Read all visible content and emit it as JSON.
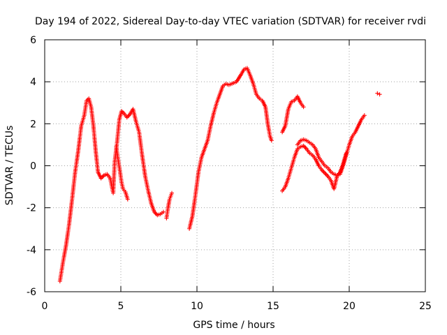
{
  "chart_data": {
    "type": "scatter",
    "title": "Day 194 of 2022, Sidereal Day-to-day VTEC variation (SDTVAR) for receiver rvdi",
    "xlabel": "GPS time / hours",
    "ylabel": "SDTVAR / TECUs",
    "xlim": [
      0,
      25
    ],
    "ylim": [
      -6,
      6
    ],
    "xticks": [
      0,
      5,
      10,
      15,
      20,
      25
    ],
    "yticks": [
      -6,
      -4,
      -2,
      0,
      2,
      4,
      6
    ],
    "grid": true,
    "marker": "plus",
    "color": "#ff0000",
    "segments": [
      [
        [
          1.0,
          -5.5
        ],
        [
          1.2,
          -4.6
        ],
        [
          1.4,
          -3.8
        ],
        [
          1.6,
          -2.8
        ],
        [
          1.8,
          -1.6
        ],
        [
          2.0,
          -0.3
        ],
        [
          2.2,
          0.7
        ],
        [
          2.4,
          1.9
        ],
        [
          2.6,
          2.4
        ],
        [
          2.75,
          3.1
        ],
        [
          2.9,
          3.2
        ],
        [
          3.05,
          2.8
        ],
        [
          3.2,
          1.9
        ],
        [
          3.35,
          0.7
        ],
        [
          3.5,
          -0.3
        ],
        [
          3.7,
          -0.6
        ],
        [
          3.9,
          -0.45
        ],
        [
          4.1,
          -0.4
        ],
        [
          4.3,
          -0.6
        ],
        [
          4.5,
          -1.3
        ],
        [
          4.6,
          0.2
        ],
        [
          4.75,
          1.1
        ],
        [
          4.9,
          2.2
        ],
        [
          5.05,
          2.6
        ],
        [
          5.2,
          2.5
        ],
        [
          5.4,
          2.3
        ],
        [
          5.6,
          2.45
        ],
        [
          5.8,
          2.7
        ],
        [
          6.0,
          2.1
        ],
        [
          6.2,
          1.6
        ],
        [
          6.4,
          0.5
        ],
        [
          6.6,
          -0.5
        ],
        [
          6.8,
          -1.2
        ],
        [
          7.0,
          -1.8
        ],
        [
          7.2,
          -2.2
        ],
        [
          7.4,
          -2.35
        ],
        [
          7.6,
          -2.3
        ],
        [
          7.8,
          -2.2
        ]
      ],
      [
        [
          4.7,
          0.9
        ],
        [
          4.8,
          0.4
        ],
        [
          4.95,
          -0.3
        ],
        [
          5.05,
          -0.8
        ],
        [
          5.15,
          -1.1
        ],
        [
          5.3,
          -1.25
        ],
        [
          5.45,
          -1.6
        ]
      ],
      [
        [
          8.0,
          -2.5
        ],
        [
          8.1,
          -2.0
        ],
        [
          8.2,
          -1.6
        ],
        [
          8.35,
          -1.3
        ]
      ],
      [
        [
          9.5,
          -3.0
        ],
        [
          9.7,
          -2.4
        ],
        [
          9.9,
          -1.4
        ],
        [
          10.1,
          -0.3
        ],
        [
          10.3,
          0.4
        ],
        [
          10.5,
          0.8
        ],
        [
          10.7,
          1.2
        ],
        [
          10.9,
          1.9
        ],
        [
          11.1,
          2.5
        ],
        [
          11.3,
          3.0
        ],
        [
          11.5,
          3.4
        ],
        [
          11.7,
          3.8
        ],
        [
          11.9,
          3.9
        ],
        [
          12.1,
          3.85
        ],
        [
          12.6,
          4.0
        ],
        [
          12.9,
          4.35
        ],
        [
          13.1,
          4.6
        ],
        [
          13.3,
          4.65
        ],
        [
          13.5,
          4.3
        ],
        [
          13.7,
          3.9
        ],
        [
          13.9,
          3.4
        ],
        [
          14.1,
          3.2
        ],
        [
          14.3,
          3.1
        ],
        [
          14.5,
          2.8
        ],
        [
          14.65,
          2.0
        ],
        [
          14.8,
          1.4
        ],
        [
          14.9,
          1.2
        ]
      ],
      [
        [
          15.6,
          1.6
        ],
        [
          15.8,
          1.9
        ],
        [
          16.0,
          2.7
        ],
        [
          16.2,
          3.05
        ],
        [
          16.4,
          3.1
        ],
        [
          16.6,
          3.3
        ],
        [
          16.8,
          3.0
        ],
        [
          17.0,
          2.8
        ]
      ],
      [
        [
          15.6,
          -1.2
        ],
        [
          15.8,
          -1.0
        ],
        [
          16.0,
          -0.6
        ],
        [
          16.2,
          -0.1
        ],
        [
          16.4,
          0.4
        ],
        [
          16.6,
          0.8
        ],
        [
          16.8,
          0.9
        ],
        [
          17.0,
          0.95
        ],
        [
          17.2,
          0.8
        ],
        [
          17.4,
          0.6
        ],
        [
          17.6,
          0.5
        ],
        [
          17.8,
          0.3
        ],
        [
          18.0,
          0.0
        ],
        [
          18.2,
          -0.2
        ],
        [
          18.4,
          -0.35
        ],
        [
          18.6,
          -0.5
        ],
        [
          18.8,
          -0.7
        ],
        [
          19.0,
          -1.1
        ],
        [
          19.2,
          -0.5
        ],
        [
          19.4,
          -0.3
        ],
        [
          19.6,
          0.1
        ],
        [
          19.8,
          0.6
        ]
      ],
      [
        [
          16.6,
          1.0
        ],
        [
          16.8,
          1.2
        ],
        [
          17.0,
          1.25
        ],
        [
          17.2,
          1.2
        ],
        [
          17.4,
          1.1
        ],
        [
          17.6,
          1.0
        ],
        [
          17.8,
          0.8
        ],
        [
          18.0,
          0.4
        ],
        [
          18.2,
          0.2
        ],
        [
          18.4,
          0.0
        ],
        [
          18.6,
          -0.1
        ],
        [
          18.8,
          -0.3
        ],
        [
          19.0,
          -0.4
        ],
        [
          19.2,
          -0.45
        ],
        [
          19.4,
          -0.4
        ],
        [
          19.6,
          0.0
        ],
        [
          19.8,
          0.5
        ],
        [
          20.0,
          1.0
        ],
        [
          20.2,
          1.4
        ],
        [
          20.4,
          1.6
        ],
        [
          20.6,
          1.9
        ],
        [
          20.8,
          2.2
        ],
        [
          21.0,
          2.4
        ]
      ],
      [
        [
          21.85,
          3.45
        ],
        [
          22.0,
          3.4
        ]
      ]
    ]
  }
}
